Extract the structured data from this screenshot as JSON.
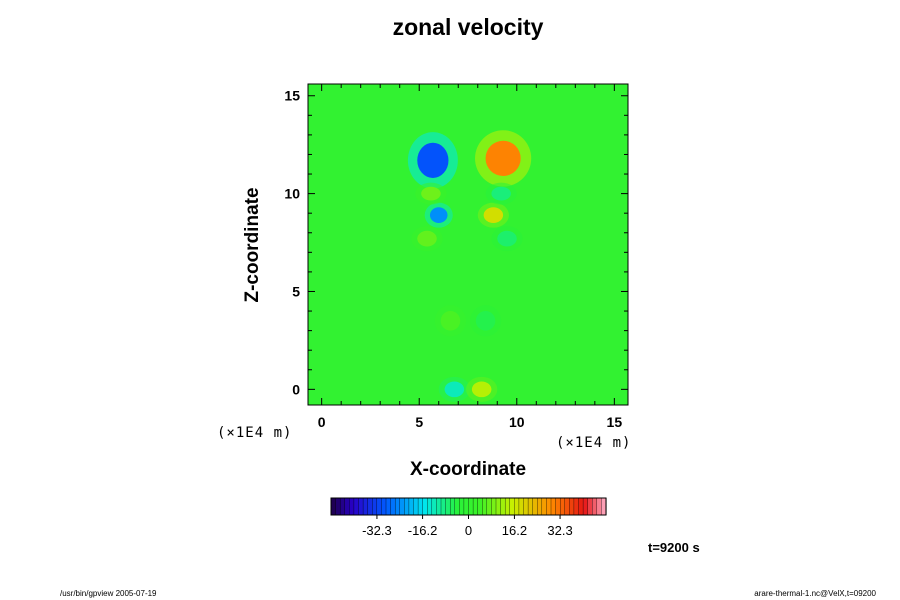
{
  "chart_data": {
    "type": "heatmap",
    "title": "zonal velocity",
    "xlabel": "X-coordinate",
    "ylabel": "Z-coordinate",
    "x_unit": "(×1E4 m)",
    "y_unit": "(×1E4 m)",
    "xlim": [
      -0.7,
      15.7
    ],
    "ylim": [
      -0.8,
      15.6
    ],
    "xticks": [
      0,
      5,
      10,
      15
    ],
    "yticks": [
      0,
      5,
      10,
      15
    ],
    "colorbar": {
      "ticks": [
        "-32.3",
        "-16.2",
        "0",
        "16.2",
        "32.3"
      ],
      "tick_values": [
        -32.3,
        -16.2,
        0,
        16.2,
        32.3
      ],
      "range": [
        -48.5,
        48.5
      ]
    },
    "background_value": 0,
    "features": [
      {
        "x": 5.7,
        "z": 11.7,
        "value": -30,
        "rx": 0.8,
        "rz": 0.9
      },
      {
        "x": 9.3,
        "z": 11.8,
        "value": 30,
        "rx": 0.9,
        "rz": 0.9
      },
      {
        "x": 6.0,
        "z": 8.9,
        "value": -24,
        "rx": 0.45,
        "rz": 0.4
      },
      {
        "x": 8.8,
        "z": 8.9,
        "value": 18,
        "rx": 0.5,
        "rz": 0.4
      },
      {
        "x": 5.6,
        "z": 10.0,
        "value": 8,
        "rx": 0.5,
        "rz": 0.35
      },
      {
        "x": 9.2,
        "z": 10.0,
        "value": -8,
        "rx": 0.5,
        "rz": 0.35
      },
      {
        "x": 5.4,
        "z": 7.7,
        "value": 7,
        "rx": 0.5,
        "rz": 0.4
      },
      {
        "x": 9.5,
        "z": 7.7,
        "value": -7,
        "rx": 0.5,
        "rz": 0.4
      },
      {
        "x": 6.8,
        "z": 0.0,
        "value": -12,
        "rx": 0.5,
        "rz": 0.4
      },
      {
        "x": 8.2,
        "z": 0.0,
        "value": 14,
        "rx": 0.5,
        "rz": 0.4
      },
      {
        "x": 6.6,
        "z": 3.5,
        "value": 5,
        "rx": 0.5,
        "rz": 0.5
      },
      {
        "x": 8.4,
        "z": 3.5,
        "value": -5,
        "rx": 0.5,
        "rz": 0.5
      }
    ]
  },
  "time_label": "t=9200 s",
  "footer": {
    "left": "/usr/bin/gpview 2005-07-19",
    "right": "arare-thermal-1.nc@VelX,t=09200"
  }
}
